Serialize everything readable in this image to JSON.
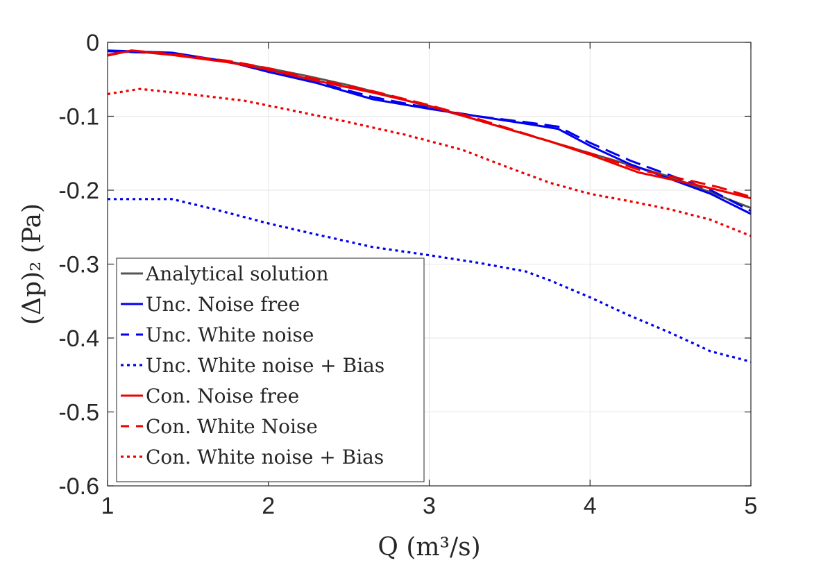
{
  "chart_data": {
    "type": "line",
    "xlabel": "Q (m³/s)",
    "ylabel": "(Δp)₂ (Pa)",
    "xlim": [
      1,
      5
    ],
    "ylim": [
      -0.6,
      0
    ],
    "xticks": [
      "1",
      "2",
      "3",
      "4",
      "5"
    ],
    "yticks": [
      "0",
      "-0.1",
      "-0.2",
      "-0.3",
      "-0.4",
      "-0.5",
      "-0.6"
    ],
    "grid": true,
    "legend_position": "bottom-left",
    "series": [
      {
        "name": "Analytical solution",
        "color": "#555555",
        "style": "solid",
        "x": [
          1.0,
          1.25,
          1.5,
          1.75,
          2.0,
          2.25,
          2.5,
          2.75,
          3.0,
          3.25,
          3.5,
          3.75,
          4.0,
          4.25,
          4.5,
          4.75,
          5.0
        ],
        "y": [
          -0.012,
          -0.014,
          -0.019,
          -0.026,
          -0.035,
          -0.046,
          -0.058,
          -0.072,
          -0.087,
          -0.102,
          -0.118,
          -0.134,
          -0.15,
          -0.166,
          -0.182,
          -0.203,
          -0.224
        ]
      },
      {
        "name": "Unc. Noise free",
        "color": "#0000ee",
        "style": "solid",
        "x": [
          1.0,
          1.4,
          1.75,
          2.0,
          2.3,
          2.65,
          3.0,
          3.3,
          3.6,
          3.8,
          4.0,
          4.25,
          4.5,
          4.75,
          5.0
        ],
        "y": [
          -0.011,
          -0.014,
          -0.026,
          -0.04,
          -0.055,
          -0.077,
          -0.09,
          -0.1,
          -0.11,
          -0.117,
          -0.14,
          -0.165,
          -0.185,
          -0.205,
          -0.232
        ]
      },
      {
        "name": "Unc. White noise",
        "color": "#0000ee",
        "style": "dashed",
        "x": [
          1.0,
          1.4,
          1.75,
          2.0,
          2.3,
          2.65,
          3.0,
          3.3,
          3.6,
          3.8,
          4.0,
          4.25,
          4.5,
          4.75,
          5.0
        ],
        "y": [
          -0.012,
          -0.015,
          -0.026,
          -0.04,
          -0.054,
          -0.074,
          -0.089,
          -0.1,
          -0.108,
          -0.114,
          -0.136,
          -0.16,
          -0.18,
          -0.2,
          -0.228
        ]
      },
      {
        "name": "Unc. White noise + Bias",
        "color": "#0000ee",
        "style": "dotted",
        "x": [
          1.0,
          1.4,
          1.65,
          2.0,
          2.3,
          2.65,
          3.0,
          3.3,
          3.6,
          3.75,
          4.0,
          4.25,
          4.5,
          4.75,
          5.0
        ],
        "y": [
          -0.212,
          -0.212,
          -0.225,
          -0.245,
          -0.26,
          -0.277,
          -0.288,
          -0.298,
          -0.31,
          -0.322,
          -0.345,
          -0.37,
          -0.393,
          -0.418,
          -0.432
        ]
      },
      {
        "name": "Con. Noise free",
        "color": "#ee0000",
        "style": "solid",
        "x": [
          1.0,
          1.15,
          1.4,
          1.75,
          2.0,
          2.3,
          2.65,
          3.0,
          3.25,
          3.5,
          3.75,
          4.0,
          4.3,
          4.6,
          4.8,
          5.0
        ],
        "y": [
          -0.018,
          -0.011,
          -0.017,
          -0.027,
          -0.037,
          -0.052,
          -0.068,
          -0.086,
          -0.102,
          -0.118,
          -0.134,
          -0.152,
          -0.176,
          -0.19,
          -0.2,
          -0.211
        ]
      },
      {
        "name": "Con. White Noise",
        "color": "#ee0000",
        "style": "dashed",
        "x": [
          1.0,
          1.15,
          1.4,
          1.75,
          2.0,
          2.3,
          2.65,
          3.0,
          3.25,
          3.5,
          3.75,
          4.0,
          4.3,
          4.6,
          4.8,
          5.0
        ],
        "y": [
          -0.017,
          -0.011,
          -0.016,
          -0.025,
          -0.035,
          -0.05,
          -0.066,
          -0.085,
          -0.1,
          -0.117,
          -0.134,
          -0.15,
          -0.172,
          -0.186,
          -0.196,
          -0.209
        ]
      },
      {
        "name": "Con. White noise + Bias",
        "color": "#ee0000",
        "style": "dotted",
        "x": [
          1.0,
          1.2,
          1.5,
          1.85,
          2.1,
          2.5,
          2.85,
          3.2,
          3.5,
          3.75,
          4.0,
          4.25,
          4.5,
          4.75,
          5.0
        ],
        "y": [
          -0.07,
          -0.063,
          -0.07,
          -0.079,
          -0.09,
          -0.108,
          -0.125,
          -0.145,
          -0.17,
          -0.19,
          -0.205,
          -0.215,
          -0.226,
          -0.24,
          -0.262
        ]
      }
    ]
  }
}
